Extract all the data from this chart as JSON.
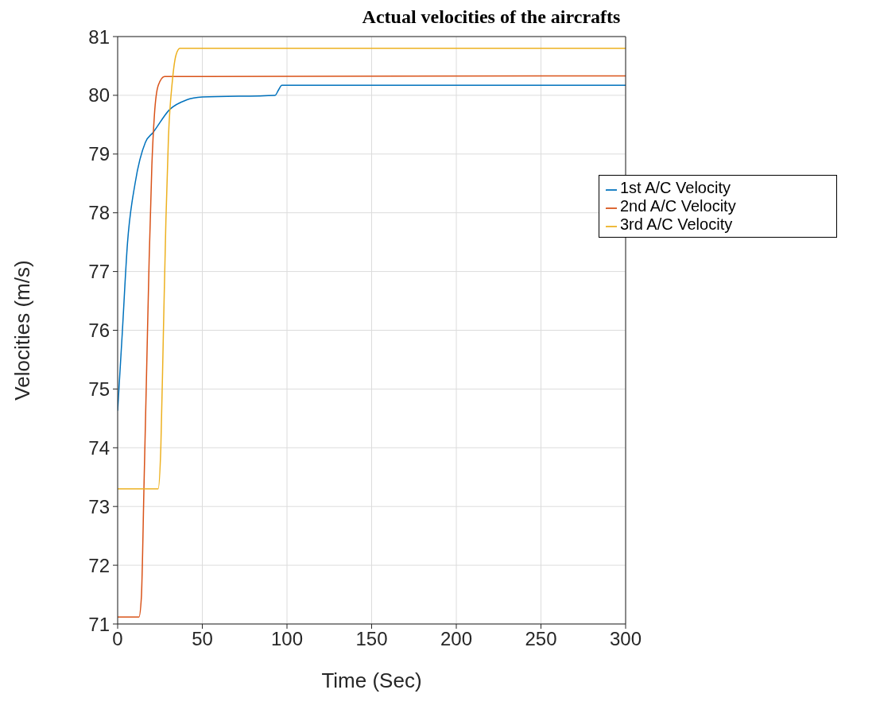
{
  "chart_data": {
    "type": "line",
    "title": "Actual velocities of the aircrafts",
    "xlabel": "Time (Sec)",
    "ylabel": "Velocities (m/s)",
    "xlim": [
      0,
      300
    ],
    "xticks": [
      0,
      50,
      100,
      150,
      200,
      250,
      300
    ],
    "ylim": [
      71,
      81
    ],
    "yticks": [
      71,
      72,
      73,
      74,
      75,
      76,
      77,
      78,
      79,
      80,
      81
    ],
    "grid": true,
    "legend": "top right",
    "marker": "none",
    "line_style": "solid",
    "series": [
      {
        "name": "1st A/C Velocity",
        "color": "#0072bd",
        "x": [
          0,
          2.7,
          5.8,
          10.3,
          16.4,
          21,
          30.8,
          40.6,
          50,
          93,
          95,
          97,
          300
        ],
        "values": [
          74.63,
          75.94,
          77.48,
          78.5,
          79.2,
          79.37,
          79.76,
          79.92,
          79.97,
          80,
          80.09,
          80.17,
          80.17
        ]
      },
      {
        "name": "2nd A/C Velocity",
        "color": "#d95319",
        "x": [
          0,
          12.6,
          14,
          15.6,
          17.1,
          18.6,
          20.2,
          21.7,
          24,
          27.7,
          300
        ],
        "values": [
          71.12,
          71.12,
          71.45,
          73.4,
          75.3,
          77.2,
          78.8,
          79.66,
          80.17,
          80.32,
          80.33
        ]
      },
      {
        "name": "3rd A/C Velocity",
        "color": "#edb120",
        "x": [
          0,
          23.9,
          25.5,
          27,
          28.5,
          30,
          32.3,
          34.5,
          36.8,
          300
        ],
        "values": [
          73.3,
          73.3,
          74,
          75.94,
          77.87,
          79.28,
          80.24,
          80.69,
          80.8,
          80.8
        ]
      }
    ]
  }
}
